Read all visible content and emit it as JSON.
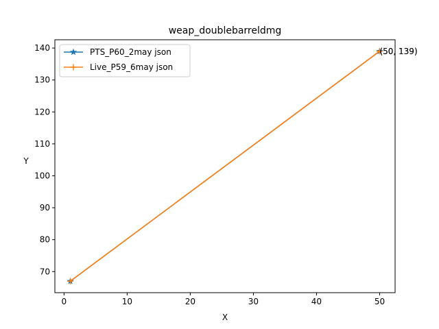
{
  "chart_data": {
    "type": "line",
    "title": "weap_doublebarreldmg",
    "xlabel": "X",
    "ylabel": "Y",
    "xlim": [
      -1.45,
      52.45
    ],
    "ylim": [
      63.4,
      142.6
    ],
    "xticks": [
      0,
      10,
      20,
      30,
      40,
      50
    ],
    "yticks": [
      70,
      80,
      90,
      100,
      110,
      120,
      130,
      140
    ],
    "grid": false,
    "legend_position": "upper-left",
    "series": [
      {
        "name": "PTS_P60_2may json",
        "color": "#1f77b4",
        "marker": "star",
        "x": [
          1,
          50
        ],
        "y": [
          67,
          139
        ]
      },
      {
        "name": "Live_P59_6may json",
        "color": "#ff7f0e",
        "marker": "plus",
        "x": [
          1,
          50
        ],
        "y": [
          67,
          139
        ]
      }
    ],
    "annotations": [
      {
        "text": "(50, 139)",
        "x": 50,
        "y": 139
      },
      {
        "text": "(50, 139)",
        "x": 50,
        "y": 139
      }
    ]
  }
}
